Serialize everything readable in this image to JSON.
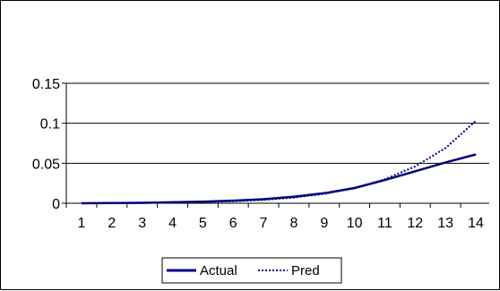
{
  "chart_data": {
    "type": "line",
    "x": [
      1,
      2,
      3,
      4,
      5,
      6,
      7,
      8,
      9,
      10,
      11,
      12,
      13,
      14
    ],
    "categories": [
      "1",
      "2",
      "3",
      "4",
      "5",
      "6",
      "7",
      "8",
      "9",
      "10",
      "11",
      "12",
      "13",
      "14"
    ],
    "series": [
      {
        "name": "Actual",
        "values": [
          0.0,
          0.0002,
          0.0006,
          0.0012,
          0.002,
          0.0032,
          0.005,
          0.0082,
          0.0125,
          0.019,
          0.029,
          0.04,
          0.051,
          0.061
        ],
        "color": "#000080",
        "style": "solid"
      },
      {
        "name": "Pred",
        "values": [
          0.0,
          0.0001,
          0.0003,
          0.0007,
          0.0014,
          0.0025,
          0.0042,
          0.0072,
          0.0118,
          0.0188,
          0.03,
          0.046,
          0.069,
          0.103
        ],
        "color": "#000080",
        "style": "dotted"
      }
    ],
    "yticks": [
      "0",
      "0.05",
      "0.1",
      "0.15"
    ],
    "ylim": [
      0,
      0.15
    ],
    "title": "",
    "xlabel": "",
    "ylabel": "",
    "grid": "horizontal",
    "legend_position": "bottom"
  }
}
